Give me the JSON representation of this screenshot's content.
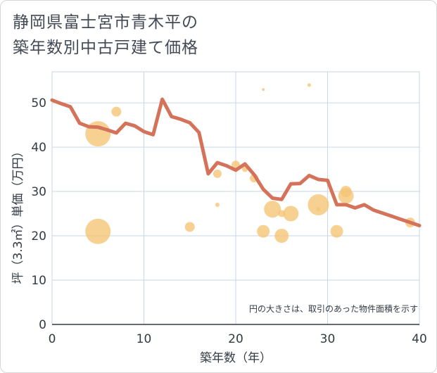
{
  "title_line1": "静岡県富士宮市青木平の",
  "title_line2": "築年数別中古戸建て価格",
  "chart_data": {
    "type": "scatter",
    "title": "静岡県富士宮市青木平の築年数別中古戸建て価格",
    "xlabel": "築年数（年）",
    "ylabel": "坪（3.3㎡）単価（万円）",
    "xlim": [
      0,
      40
    ],
    "ylim": [
      0,
      57
    ],
    "xticks": [
      0,
      10,
      20,
      30,
      40
    ],
    "yticks": [
      0,
      10,
      20,
      30,
      40,
      50
    ],
    "grid": true,
    "note": "円の大きさは、取引のあった物件面積を示す",
    "colors": {
      "line": "#d4725a",
      "bubble": "#f5c473"
    },
    "trend_line": {
      "x": [
        0,
        1,
        2,
        3,
        4,
        5,
        6,
        7,
        8,
        9,
        10,
        11,
        12,
        13,
        14,
        15,
        16,
        17,
        18,
        19,
        20,
        21,
        22,
        23,
        24,
        25,
        26,
        27,
        28,
        29,
        30,
        31,
        32,
        33,
        34,
        35,
        36,
        37,
        38,
        39,
        40
      ],
      "y": [
        50.6,
        49.8,
        49.1,
        45.4,
        44.6,
        44.5,
        43.9,
        43.2,
        45.4,
        44.8,
        43.5,
        42.8,
        50.8,
        46.9,
        46.3,
        45.5,
        43.3,
        34.0,
        36.5,
        35.8,
        34.8,
        36.2,
        33.8,
        30.5,
        28.5,
        28.2,
        31.7,
        31.8,
        33.6,
        32.7,
        32.5,
        27.0,
        27.0,
        26.3,
        27.0,
        25.8,
        25.1,
        24.4,
        23.7,
        23.0,
        22.3
      ]
    },
    "bubbles": [
      {
        "x": 5,
        "y": 43,
        "size": 18
      },
      {
        "x": 5,
        "y": 21,
        "size": 18
      },
      {
        "x": 7,
        "y": 48,
        "size": 7
      },
      {
        "x": 15,
        "y": 22,
        "size": 7
      },
      {
        "x": 18,
        "y": 34,
        "size": 6
      },
      {
        "x": 18,
        "y": 27,
        "size": 3
      },
      {
        "x": 20,
        "y": 36,
        "size": 6
      },
      {
        "x": 21,
        "y": 35,
        "size": 4
      },
      {
        "x": 22,
        "y": 33,
        "size": 6
      },
      {
        "x": 23,
        "y": 53,
        "size": 2
      },
      {
        "x": 23,
        "y": 21,
        "size": 9
      },
      {
        "x": 24,
        "y": 26,
        "size": 12
      },
      {
        "x": 25,
        "y": 20,
        "size": 10
      },
      {
        "x": 25,
        "y": 25,
        "size": 5
      },
      {
        "x": 26,
        "y": 25,
        "size": 11
      },
      {
        "x": 28,
        "y": 54,
        "size": 2.5
      },
      {
        "x": 29,
        "y": 27,
        "size": 15
      },
      {
        "x": 29,
        "y": 26,
        "size": 3
      },
      {
        "x": 31,
        "y": 21,
        "size": 9
      },
      {
        "x": 32,
        "y": 29,
        "size": 11
      },
      {
        "x": 32,
        "y": 30,
        "size": 8
      },
      {
        "x": 39,
        "y": 23,
        "size": 7
      }
    ]
  }
}
